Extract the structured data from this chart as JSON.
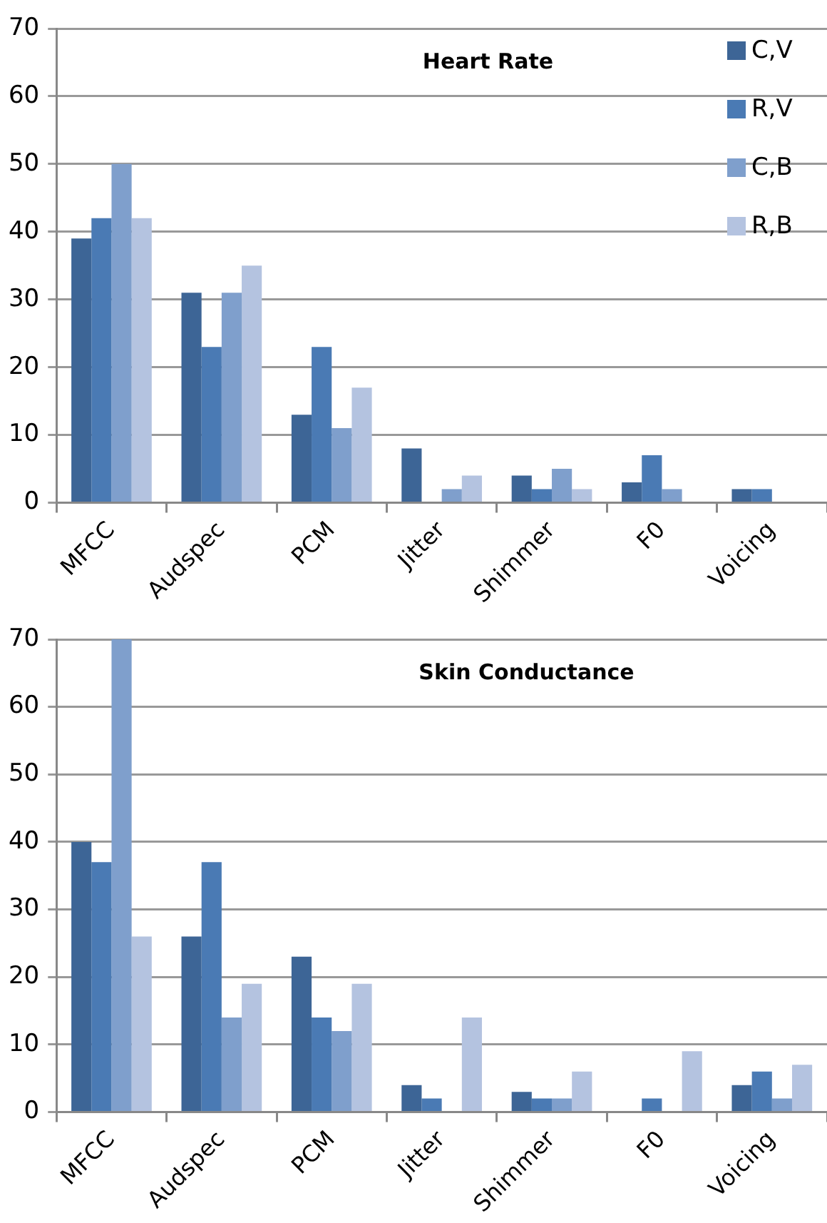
{
  "chart_data": [
    {
      "type": "bar",
      "title": "Heart Rate",
      "categories": [
        "MFCC",
        "Audspec",
        "PCM",
        "Jitter",
        "Shimmer",
        "F0",
        "Voicing"
      ],
      "series": [
        {
          "name": "C,V",
          "color": "#3d6596",
          "values": [
            39,
            31,
            13,
            8,
            4,
            3,
            2
          ]
        },
        {
          "name": "R,V",
          "color": "#4a7ab4",
          "values": [
            42,
            23,
            23,
            0,
            2,
            7,
            2
          ]
        },
        {
          "name": "C,B",
          "color": "#7f9fcc",
          "values": [
            50,
            31,
            11,
            2,
            5,
            2,
            0
          ]
        },
        {
          "name": "R,B",
          "color": "#b4c3e0",
          "values": [
            42,
            35,
            17,
            4,
            2,
            0,
            0
          ]
        }
      ],
      "ylim": [
        0,
        70
      ],
      "yticks": [
        0,
        10,
        20,
        30,
        40,
        50,
        60,
        70
      ],
      "grid": "y",
      "legend": "top right"
    },
    {
      "type": "bar",
      "title": "Skin Conductance",
      "categories": [
        "MFCC",
        "Audspec",
        "PCM",
        "Jitter",
        "Shimmer",
        "F0",
        "Voicing"
      ],
      "series": [
        {
          "color": "#3d6596",
          "values": [
            40,
            26,
            23,
            4,
            3,
            0,
            4
          ]
        },
        {
          "color": "#4a7ab4",
          "values": [
            37,
            37,
            14,
            2,
            2,
            2,
            6
          ]
        },
        {
          "color": "#7f9fcc",
          "values": [
            70,
            14,
            12,
            0,
            2,
            0,
            2
          ]
        },
        {
          "color": "#b4c3e0",
          "values": [
            26,
            19,
            19,
            14,
            6,
            9,
            7
          ]
        }
      ],
      "ylim": [
        0,
        70
      ],
      "yticks": [
        0,
        10,
        20,
        30,
        40,
        50,
        60,
        70
      ],
      "grid": "y"
    }
  ]
}
